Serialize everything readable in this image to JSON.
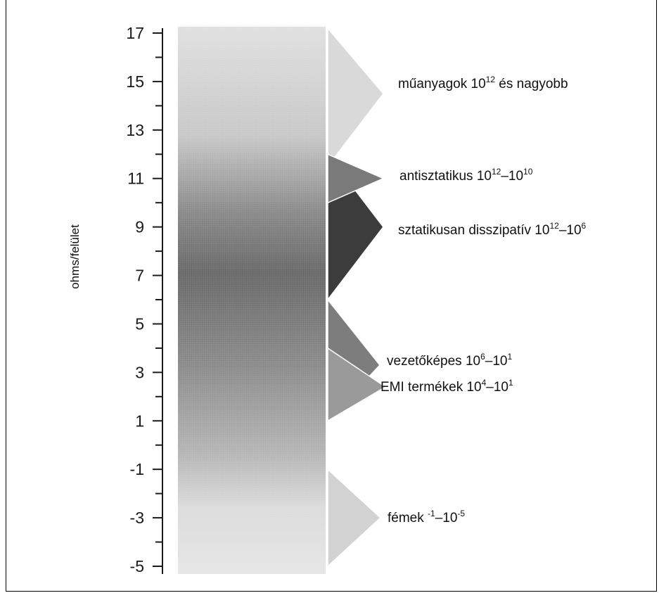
{
  "axis": {
    "ylabel": "ohms/felület",
    "ticks": [
      17,
      15,
      13,
      11,
      9,
      7,
      5,
      3,
      1,
      -1,
      -3,
      -5
    ],
    "tick_labels": [
      "17",
      "15",
      "13",
      "11",
      "9",
      "7",
      "5",
      "3",
      "1",
      "-1",
      "-3",
      "-5"
    ],
    "range": [
      -5,
      17
    ]
  },
  "categories": [
    {
      "name": "műanyagok",
      "base": "műanyagok 10",
      "sup1": "12",
      "rest": " és nagyobb",
      "sup2": "",
      "tail": "",
      "range": [
        11.5,
        17.2
      ],
      "peak": 14.5,
      "color": "#d9d9d9"
    },
    {
      "name": "antisztatikus",
      "base": "antisztatikus 10",
      "sup1": "12",
      "rest": "–10",
      "sup2": "10",
      "tail": "",
      "range": [
        10,
        12
      ],
      "peak": 11,
      "color": "#7a7a7a"
    },
    {
      "name": "sztatikusan disszipatív",
      "base": "sztatikusan disszipatív 10",
      "sup1": "12",
      "rest": "–10",
      "sup2": "6",
      "tail": "",
      "range": [
        6,
        12
      ],
      "peak": 9,
      "color": "#3c3c3c"
    },
    {
      "name": "vezetőképes",
      "base": "vezetőképes 10",
      "sup1": "6",
      "rest": "–10",
      "sup2": "1",
      "tail": "",
      "range": [
        1,
        6
      ],
      "peak": 3.3,
      "color": "#7d7d7d"
    },
    {
      "name": "EMI termékek",
      "base": "EMI termékek 10",
      "sup1": "4",
      "rest": "–10",
      "sup2": "1",
      "tail": "",
      "range": [
        1,
        4
      ],
      "peak": 2.4,
      "color": "#9a9a9a"
    },
    {
      "name": "fémek",
      "base": "fémek ",
      "sup1": "-1",
      "rest": "–10",
      "sup2": "-5",
      "tail": "",
      "range": [
        -5,
        -1
      ],
      "peak": -3,
      "color": "#d2d2d2"
    }
  ]
}
